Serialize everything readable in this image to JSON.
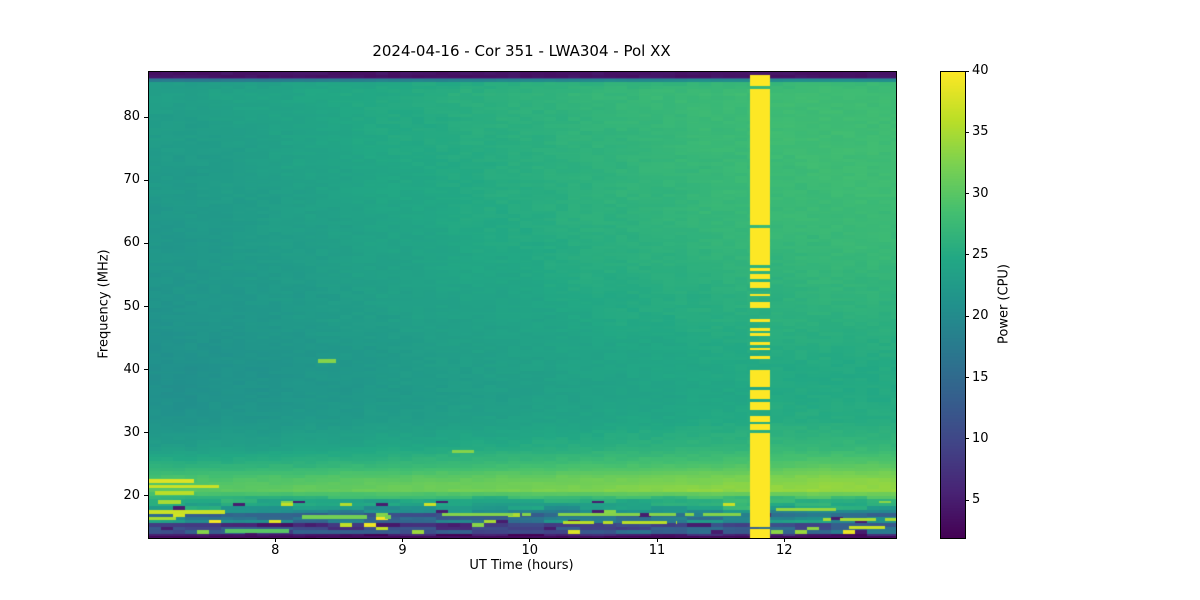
{
  "chart_data": {
    "type": "heatmap",
    "title": "2024-04-16 - Cor 351 - LWA304 - Pol XX",
    "xlabel": "UT Time (hours)",
    "ylabel": "Frequency (MHz)",
    "x_range": [
      7.0,
      12.87
    ],
    "y_range": [
      13.5,
      87.3
    ],
    "x_ticks": [
      8,
      9,
      10,
      11,
      12
    ],
    "y_ticks": [
      20,
      30,
      40,
      50,
      60,
      70,
      80
    ],
    "colorbar": {
      "label": "Power (CPU)",
      "vmin": 2,
      "vmax": 40,
      "ticks": [
        5,
        10,
        15,
        20,
        25,
        30,
        35,
        40
      ]
    },
    "colormap": {
      "name": "viridis",
      "stops": [
        [
          0.0,
          "#440154"
        ],
        [
          0.1,
          "#482475"
        ],
        [
          0.2,
          "#414487"
        ],
        [
          0.3,
          "#355f8d"
        ],
        [
          0.4,
          "#2a788e"
        ],
        [
          0.5,
          "#21918c"
        ],
        [
          0.6,
          "#22a884"
        ],
        [
          0.7,
          "#44bf70"
        ],
        [
          0.8,
          "#7ad151"
        ],
        [
          0.9,
          "#bddf26"
        ],
        [
          1.0,
          "#fde725"
        ]
      ]
    },
    "grid": {
      "freqs": [
        87,
        85.5,
        84,
        80,
        76,
        72,
        68,
        64,
        60,
        56,
        52,
        48,
        44,
        40,
        36,
        32,
        28,
        25,
        23,
        21,
        19.5,
        18,
        17,
        16.2,
        15.4,
        14.6,
        14,
        13.5
      ],
      "values": [
        [
          4,
          4,
          4,
          4,
          4,
          4,
          4,
          4,
          4,
          4,
          4,
          4,
          4,
          4,
          4,
          4,
          4,
          4,
          4,
          4
        ],
        [
          23,
          23,
          23,
          23.5,
          24,
          24,
          24.5,
          25,
          25,
          25.5,
          26,
          26,
          26.5,
          26.5,
          27,
          27,
          27,
          27.5,
          27.5,
          27.5
        ],
        [
          23.5,
          23.5,
          24,
          24,
          24.5,
          25,
          25,
          25.5,
          26,
          26,
          26.5,
          27,
          27,
          27.5,
          27.5,
          28,
          28,
          28,
          28,
          28
        ],
        [
          23,
          23,
          23.5,
          24,
          24,
          24.5,
          25,
          25,
          25.5,
          26,
          26,
          26.5,
          27,
          27,
          27.5,
          27.5,
          28,
          28,
          28,
          28
        ],
        [
          23,
          23,
          23,
          23.5,
          24,
          24.5,
          25,
          25,
          25.5,
          25.5,
          26,
          26.5,
          26.5,
          27,
          27.5,
          27.5,
          28,
          28,
          28,
          28
        ],
        [
          22.5,
          22.5,
          23,
          23.5,
          24,
          24,
          24.5,
          25,
          25,
          25.5,
          26,
          26,
          26.5,
          27,
          27,
          27.5,
          27.5,
          28,
          28,
          28
        ],
        [
          22.5,
          22.5,
          23,
          23,
          23.5,
          24,
          24.5,
          24.5,
          25,
          25.5,
          25.5,
          26,
          26.5,
          26.5,
          27,
          27.5,
          27.5,
          27.5,
          28,
          28
        ],
        [
          22,
          22.5,
          22.5,
          23,
          23.5,
          23.5,
          24,
          24.5,
          25,
          25,
          25.5,
          26,
          26,
          26.5,
          27,
          27,
          27.5,
          27.5,
          27.5,
          27.5
        ],
        [
          22,
          22,
          22.5,
          23,
          23,
          23.5,
          24,
          24,
          24.5,
          25,
          25,
          25.5,
          26,
          26,
          26.5,
          27,
          27,
          27,
          27.5,
          27.5
        ],
        [
          22,
          22,
          22.5,
          22.5,
          23,
          23.5,
          23.5,
          24,
          24.5,
          24.5,
          25,
          25.5,
          25.5,
          26,
          26,
          26.5,
          26.5,
          27,
          27,
          27
        ],
        [
          21.5,
          22,
          22,
          22.5,
          22.5,
          23,
          23.5,
          23.5,
          24,
          24,
          24.5,
          25,
          25,
          25.5,
          25.5,
          26,
          26,
          26.5,
          26.5,
          26.5
        ],
        [
          21.5,
          21.5,
          22,
          22,
          22.5,
          23,
          23,
          23.5,
          23.5,
          24,
          24,
          24.5,
          25,
          25,
          25.5,
          25.5,
          26,
          26,
          26,
          26
        ],
        [
          21,
          21.5,
          21.5,
          22,
          22,
          22.5,
          22.5,
          23,
          23.5,
          23.5,
          24,
          24,
          24.5,
          24.5,
          25,
          25,
          25.5,
          25.5,
          25.5,
          25.5
        ],
        [
          21,
          21,
          21.5,
          21.5,
          22,
          22,
          22.5,
          23,
          23,
          23.5,
          23.5,
          24,
          24,
          24.5,
          24.5,
          25,
          25,
          25,
          25,
          25
        ],
        [
          21,
          21,
          21.5,
          21.5,
          22,
          22,
          22.5,
          22.5,
          23,
          23,
          23.5,
          23.5,
          24,
          24,
          24.5,
          24.5,
          25,
          25,
          25,
          25
        ],
        [
          21.5,
          21.5,
          22,
          22,
          22.5,
          22.5,
          23,
          23,
          23.5,
          23.5,
          24,
          24,
          24.5,
          24.5,
          25,
          25,
          25.5,
          25.5,
          25.5,
          25.5
        ],
        [
          23,
          23,
          23.5,
          23.5,
          24,
          24,
          24.5,
          24.5,
          25,
          25,
          25.5,
          25.5,
          26,
          26,
          26.5,
          26.5,
          27,
          27,
          27,
          27
        ],
        [
          26,
          26,
          26,
          26.5,
          26.5,
          27,
          27,
          27.5,
          27.5,
          28,
          28,
          28.5,
          28.5,
          29,
          29,
          29.5,
          29.5,
          30,
          30,
          30
        ],
        [
          29,
          29,
          29,
          29.5,
          29.5,
          30,
          30,
          30.5,
          30.5,
          31,
          31,
          31.5,
          31.5,
          32,
          32,
          32.5,
          32.5,
          33,
          33,
          33
        ],
        [
          30,
          30,
          30.5,
          30.5,
          31,
          31,
          31.5,
          31.5,
          32,
          32,
          32.5,
          32.5,
          33,
          33,
          33.5,
          33.5,
          34,
          34,
          34,
          34
        ],
        [
          27,
          26,
          26,
          25.5,
          25.5,
          25,
          25,
          25,
          25,
          25,
          25.5,
          25.5,
          26,
          26,
          26,
          26.5,
          26.5,
          27,
          27,
          27
        ],
        [
          24,
          23,
          23,
          22.5,
          22.5,
          22,
          22,
          22,
          22.5,
          22.5,
          23,
          23,
          23.5,
          23.5,
          24,
          24,
          24.5,
          24.5,
          25,
          25
        ],
        [
          14,
          13,
          12,
          12,
          12,
          11,
          11,
          11,
          12,
          12,
          12,
          13,
          13,
          13,
          14,
          14,
          14,
          15,
          15,
          15
        ],
        [
          26,
          24,
          22,
          21,
          20,
          20,
          19,
          19,
          20,
          20,
          21,
          21,
          22,
          22,
          23,
          23,
          24,
          24,
          25,
          25
        ],
        [
          6,
          5,
          5,
          5,
          4,
          4,
          4,
          4,
          4,
          5,
          5,
          5,
          5,
          6,
          6,
          6,
          6,
          7,
          7,
          7
        ],
        [
          18,
          16,
          15,
          14,
          14,
          13,
          13,
          14,
          14,
          15,
          15,
          16,
          16,
          17,
          17,
          18,
          18,
          19,
          19,
          19
        ],
        [
          5,
          4,
          4,
          4,
          4,
          3,
          3,
          3,
          4,
          4,
          4,
          4,
          5,
          5,
          5,
          5,
          6,
          6,
          6,
          6
        ],
        [
          3,
          3,
          3,
          3,
          3,
          3,
          3,
          3,
          3,
          3,
          3,
          3,
          3,
          3,
          3,
          3,
          3,
          3,
          3,
          3
        ]
      ]
    },
    "bands": [
      {
        "f0": 86.3,
        "f1": 87.3,
        "value": 4
      },
      {
        "f0": 13.5,
        "f1": 13.8,
        "value": 3
      }
    ],
    "streaks": [
      {
        "f": 22.5,
        "t0": 7.0,
        "t1": 7.35,
        "value": 38
      },
      {
        "f": 21.7,
        "t0": 7.0,
        "t1": 7.55,
        "value": 37
      },
      {
        "f": 20.6,
        "t0": 7.05,
        "t1": 7.4,
        "value": 36
      },
      {
        "f": 19.2,
        "t0": 7.0,
        "t1": 7.25,
        "value": 35
      },
      {
        "f": 17.6,
        "t0": 7.0,
        "t1": 7.6,
        "value": 37
      },
      {
        "f": 16.6,
        "t0": 7.0,
        "t1": 7.3,
        "value": 35
      },
      {
        "f": 41.5,
        "t0": 8.33,
        "t1": 8.47,
        "value": 33
      },
      {
        "f": 27.2,
        "t0": 9.38,
        "t1": 9.55,
        "value": 33
      },
      {
        "f": 17.2,
        "t0": 9.3,
        "t1": 11.65,
        "value": 33
      },
      {
        "f": 16.0,
        "t0": 10.25,
        "t1": 11.15,
        "value": 36
      },
      {
        "f": 18.0,
        "t0": 11.9,
        "t1": 12.4,
        "value": 34
      },
      {
        "f": 16.4,
        "t0": 12.3,
        "t1": 12.87,
        "value": 35
      },
      {
        "f": 15.2,
        "t0": 12.45,
        "t1": 12.87,
        "value": 37
      },
      {
        "f": 14.6,
        "t0": 7.6,
        "t1": 8.1,
        "value": 30
      },
      {
        "f": 16.8,
        "t0": 8.2,
        "t1": 8.9,
        "value": 32
      }
    ],
    "stripe": {
      "t0": 11.72,
      "t1": 11.88,
      "segments": [
        {
          "f0": 55,
          "f1": 87.3,
          "mode": "dashed",
          "value": 40,
          "duty": 0.93
        },
        {
          "f0": 30,
          "f1": 55,
          "mode": "dashed",
          "value": 40,
          "duty": 0.55
        },
        {
          "f0": 13.5,
          "f1": 30,
          "mode": "dashed",
          "value": 40,
          "duty": 0.97
        }
      ]
    }
  }
}
